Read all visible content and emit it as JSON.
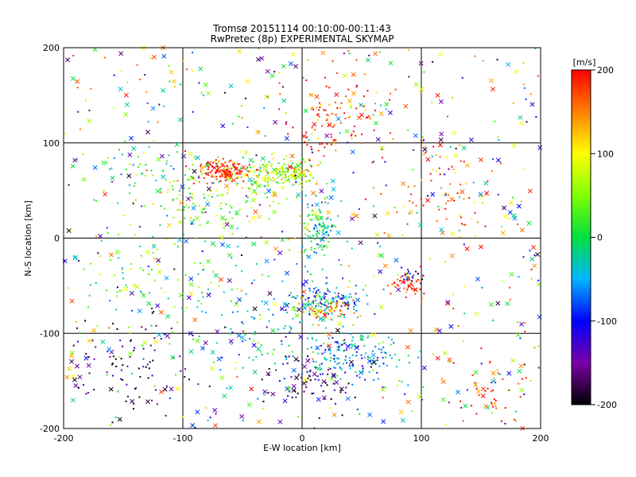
{
  "chart_data": {
    "type": "scatter",
    "title": "Tromsø 20151114 00:10:00-00:11:43",
    "subtitle": "RwPretec (8p) EXPERIMENTAL SKYMAP",
    "xlabel": "E-W location [km]",
    "ylabel": "N-S location [km]",
    "xlim": [
      -200,
      200
    ],
    "ylim": [
      -200,
      200
    ],
    "xticks": [
      "-200",
      "-100",
      "0",
      "100",
      "200"
    ],
    "yticks": [
      "-200",
      "-100",
      "0",
      "100",
      "200"
    ],
    "grid": true,
    "grid_step": 100,
    "marker_types": [
      "dot",
      "cross"
    ],
    "colorbar": {
      "label": "[m/s]",
      "range": [
        -200,
        200
      ],
      "ticks": [
        "200",
        "100",
        "0",
        "-100",
        "-200"
      ],
      "colormap": [
        {
          "value": -200,
          "color": "#000000"
        },
        {
          "value": -150,
          "color": "#7a00a8"
        },
        {
          "value": -100,
          "color": "#0000ff"
        },
        {
          "value": -50,
          "color": "#00b4ff"
        },
        {
          "value": 0,
          "color": "#00e040"
        },
        {
          "value": 50,
          "color": "#80ff00"
        },
        {
          "value": 100,
          "color": "#ffff00"
        },
        {
          "value": 150,
          "color": "#ff8000"
        },
        {
          "value": 200,
          "color": "#ff0000"
        }
      ]
    },
    "clusters": [
      {
        "x": -65,
        "y": 70,
        "sx": 12,
        "sy": 6,
        "v": 200,
        "n": 140
      },
      {
        "x": -25,
        "y": 65,
        "sx": 18,
        "sy": 10,
        "v": 60,
        "n": 150
      },
      {
        "x": -5,
        "y": 72,
        "sx": 10,
        "sy": 5,
        "v": 90,
        "n": 60
      },
      {
        "x": 25,
        "y": 125,
        "sx": 25,
        "sy": 20,
        "v": 190,
        "n": 110
      },
      {
        "x": 15,
        "y": 10,
        "sx": 8,
        "sy": 15,
        "v": 0,
        "n": 110
      },
      {
        "x": -80,
        "y": 35,
        "sx": 25,
        "sy": 18,
        "v": 40,
        "n": 110
      },
      {
        "x": 20,
        "y": -65,
        "sx": 15,
        "sy": 7,
        "v": -60,
        "n": 120
      },
      {
        "x": 20,
        "y": -75,
        "sx": 12,
        "sy": 6,
        "v": 140,
        "n": 60
      },
      {
        "x": 40,
        "y": -125,
        "sx": 22,
        "sy": 14,
        "v": -50,
        "n": 170
      },
      {
        "x": 90,
        "y": -48,
        "sx": 8,
        "sy": 6,
        "v": 180,
        "n": 50
      },
      {
        "x": 90,
        "y": -40,
        "sx": 6,
        "sy": 4,
        "v": -120,
        "n": 20
      },
      {
        "x": -150,
        "y": -130,
        "sx": 30,
        "sy": 25,
        "v": -180,
        "n": 90
      },
      {
        "x": 120,
        "y": 50,
        "sx": 25,
        "sy": 25,
        "v": 170,
        "n": 70
      },
      {
        "x": 160,
        "y": -160,
        "sx": 12,
        "sy": 18,
        "v": 195,
        "n": 40
      },
      {
        "x": -30,
        "y": -90,
        "sx": 35,
        "sy": 30,
        "v": -20,
        "n": 140
      },
      {
        "x": -120,
        "y": 70,
        "sx": 20,
        "sy": 15,
        "v": 10,
        "n": 50
      },
      {
        "x": 10,
        "y": -150,
        "sx": 20,
        "sy": 15,
        "v": -170,
        "n": 60
      },
      {
        "x": -120,
        "y": -40,
        "sx": 30,
        "sy": 20,
        "v": 30,
        "n": 70
      }
    ]
  }
}
